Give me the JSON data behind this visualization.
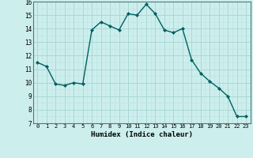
{
  "x": [
    0,
    1,
    2,
    3,
    4,
    5,
    6,
    7,
    8,
    9,
    10,
    11,
    12,
    13,
    14,
    15,
    16,
    17,
    18,
    19,
    20,
    21,
    22,
    23
  ],
  "y": [
    11.5,
    11.2,
    9.9,
    9.8,
    10.0,
    9.9,
    13.9,
    14.5,
    14.2,
    13.9,
    15.1,
    15.0,
    15.8,
    15.1,
    13.9,
    13.7,
    14.0,
    11.7,
    10.7,
    10.1,
    9.6,
    9.0,
    7.5,
    7.5
  ],
  "line_color": "#006060",
  "marker": "D",
  "marker_size": 2.0,
  "xlim": [
    -0.5,
    23.5
  ],
  "ylim": [
    7,
    16
  ],
  "yticks": [
    7,
    8,
    9,
    10,
    11,
    12,
    13,
    14,
    15,
    16
  ],
  "xticks": [
    0,
    1,
    2,
    3,
    4,
    5,
    6,
    7,
    8,
    9,
    10,
    11,
    12,
    13,
    14,
    15,
    16,
    17,
    18,
    19,
    20,
    21,
    22,
    23
  ],
  "xlabel": "Humidex (Indice chaleur)",
  "bg_color": "#cceeed",
  "grid_major_color": "#aad8d6",
  "grid_minor_color": "#bbe4e2",
  "spine_color": "#557777"
}
